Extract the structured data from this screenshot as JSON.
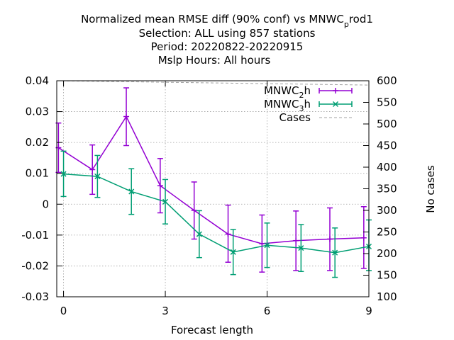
{
  "chart_data": {
    "type": "line",
    "title_lines": [
      {
        "prefix": "Normalized mean RMSE diff (90% conf) vs MNWC",
        "sub": "p",
        "suffix": "rod1"
      },
      {
        "text": "Selection: ALL using   857 stations"
      },
      {
        "text": "Period: 20220822-20220915"
      },
      {
        "text": "Mslp   Hours:  All hours"
      }
    ],
    "xlabel": "Forecast length",
    "ylabel": "",
    "y2label": "No cases",
    "xlim": [
      -0.2,
      9
    ],
    "ylim": [
      -0.03,
      0.04
    ],
    "y2lim": [
      100,
      600
    ],
    "x_ticks": [
      0,
      3,
      6,
      9
    ],
    "x_tick_labels": [
      "0",
      "3",
      "6",
      "9"
    ],
    "y_ticks": [
      -0.03,
      -0.02,
      -0.01,
      0,
      0.01,
      0.02,
      0.03,
      0.04
    ],
    "y_tick_labels": [
      "-0.03",
      "-0.02",
      "-0.01",
      "0",
      "0.01",
      "0.02",
      "0.03",
      "0.04"
    ],
    "y2_ticks": [
      100,
      150,
      200,
      250,
      300,
      350,
      400,
      450,
      500,
      550,
      600
    ],
    "y2_tick_labels": [
      "100",
      "150",
      "200",
      "250",
      "300",
      "350",
      "400",
      "450",
      "500",
      "550",
      "600"
    ],
    "grid": true,
    "legend_position": "top-right",
    "series": [
      {
        "name": "MNWC_2h",
        "legend_main": "MNWC",
        "legend_sub": "2",
        "legend_suffix": "h",
        "color": "#9400d3",
        "marker": "plus",
        "x": [
          -0.15,
          0.85,
          1.85,
          2.85,
          3.85,
          4.85,
          5.85,
          6.85,
          7.85,
          8.85
        ],
        "y": [
          0.0183,
          0.0112,
          0.0284,
          0.006,
          -0.002,
          -0.0097,
          -0.0128,
          -0.0118,
          -0.0113,
          -0.0109
        ],
        "err_low": [
          0.0103,
          0.0032,
          0.019,
          -0.0028,
          -0.0113,
          -0.0188,
          -0.022,
          -0.0215,
          -0.0215,
          -0.0208
        ],
        "err_high": [
          0.0263,
          0.0192,
          0.0377,
          0.0148,
          0.0072,
          -0.0003,
          -0.0035,
          -0.0022,
          -0.0012,
          -0.0008
        ]
      },
      {
        "name": "MNWC_3h",
        "legend_main": "MNWC",
        "legend_sub": "3",
        "legend_suffix": "h",
        "color": "#009e73",
        "marker": "cross",
        "x": [
          0,
          1,
          2,
          3,
          4,
          5,
          6,
          7,
          8,
          9
        ],
        "y": [
          0.0098,
          0.009,
          0.0041,
          0.0008,
          -0.0097,
          -0.0155,
          -0.0133,
          -0.0142,
          -0.0157,
          -0.0137
        ],
        "err_low": [
          0.0025,
          0.0022,
          -0.0033,
          -0.0064,
          -0.0173,
          -0.0228,
          -0.0205,
          -0.0218,
          -0.0237,
          -0.0215
        ],
        "err_high": [
          0.0172,
          0.0158,
          0.0115,
          0.008,
          -0.0021,
          -0.0082,
          -0.0061,
          -0.0066,
          -0.0077,
          -0.0051
        ]
      },
      {
        "name": "Cases",
        "legend_main": "Cases",
        "legend_sub": "",
        "legend_suffix": "",
        "color": "#a0a0a0",
        "marker": "none",
        "axis": "y2",
        "x": [
          -0.2,
          9
        ],
        "y": [
          600,
          590
        ]
      }
    ]
  }
}
